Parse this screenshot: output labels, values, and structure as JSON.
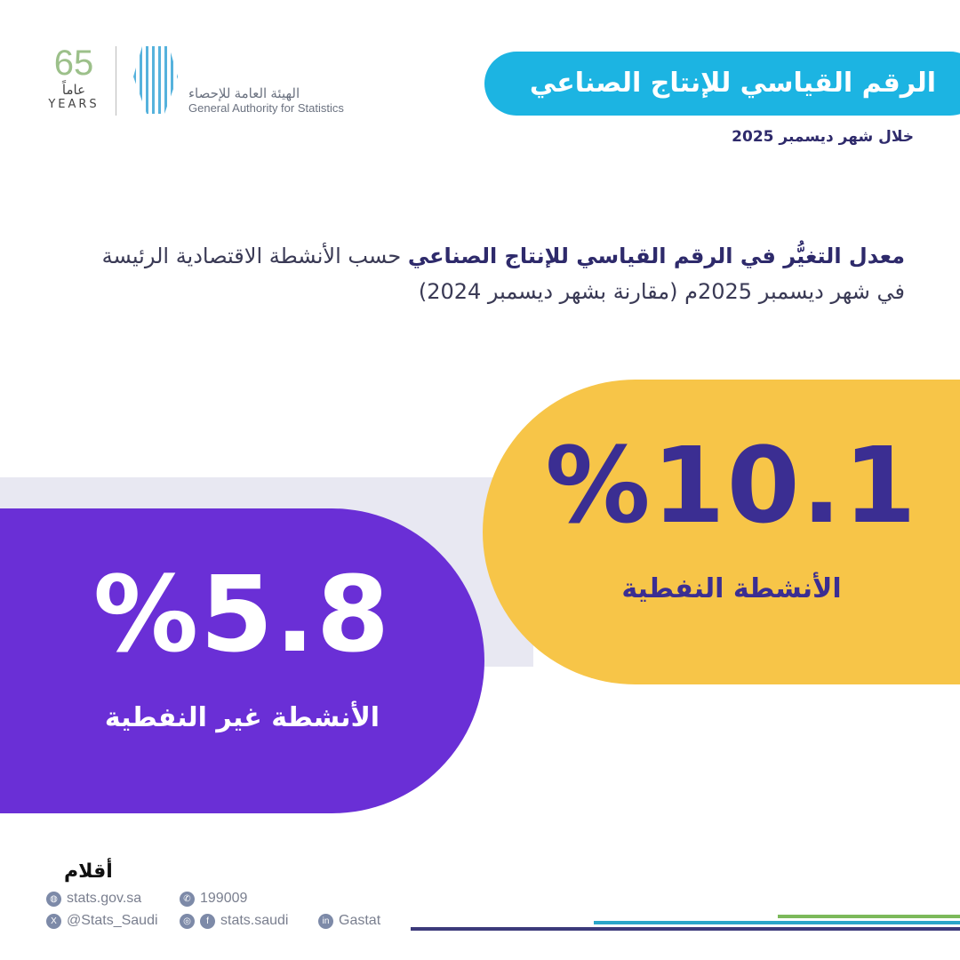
{
  "logo": {
    "anniversary_number": "65",
    "anniversary_ar": "عاماً",
    "anniversary_en": "YEARS",
    "org_ar": "الهيئة العامة للإحصاء",
    "org_en": "General Authority for Statistics"
  },
  "header": {
    "title": "الرقم القياسي للإنتاج الصناعي",
    "subtitle": "خلال شهر ديسمبر 2025"
  },
  "heading": {
    "bold_part": "معدل التغيُّر في الرقم القياسي للإنتاج الصناعي",
    "rest_line1": " حسب الأنشطة الاقتصادية الرئيسة",
    "line2": "في شهر ديسمبر 2025م (مقارنة بشهر ديسمبر 2024)"
  },
  "stats": {
    "oil": {
      "value": "%10.1",
      "label": "الأنشطة النفطية",
      "color": "#f7c548"
    },
    "non_oil": {
      "value": "%5.8",
      "label": "الأنشطة غير النفطية",
      "color": "#6a2fd6"
    }
  },
  "watermark": "أقلام",
  "footer": {
    "website": "stats.gov.sa",
    "phone": "199009",
    "twitter": "@Stats_Saudi",
    "insta_fb": "stats.saudi",
    "linkedin": "Gastat"
  }
}
